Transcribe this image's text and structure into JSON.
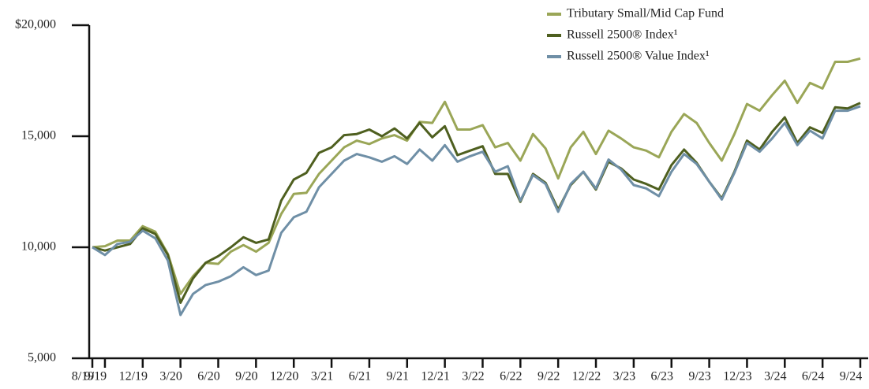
{
  "chart_data": {
    "type": "line",
    "categories": [
      "8/19",
      "9/19",
      null,
      null,
      "12/19",
      null,
      null,
      "3/20",
      null,
      null,
      "6/20",
      null,
      null,
      "9/20",
      null,
      null,
      "12/20",
      null,
      null,
      "3/21",
      null,
      null,
      "6/21",
      null,
      null,
      "9/21",
      null,
      null,
      "12/21",
      null,
      null,
      "3/22",
      null,
      null,
      "6/22",
      null,
      null,
      "9/22",
      null,
      null,
      "12/22",
      null,
      null,
      "3/23",
      null,
      null,
      "6/23",
      null,
      null,
      "9/23",
      null,
      null,
      "12/23",
      null,
      null,
      "3/24",
      null,
      null,
      "6/24",
      null,
      null,
      "9/24"
    ],
    "series": [
      {
        "name": "Tributary Small/Mid Cap Fund",
        "color": "#9aa657",
        "values": [
          10000,
          10050,
          10300,
          10300,
          10950,
          10700,
          9700,
          7900,
          8700,
          9300,
          9250,
          9800,
          10100,
          9800,
          10200,
          11500,
          12400,
          12450,
          13300,
          13900,
          14500,
          14800,
          14650,
          14900,
          15050,
          14800,
          15650,
          15600,
          16550,
          15300,
          15300,
          15500,
          14500,
          14700,
          13900,
          15100,
          14450,
          13100,
          14500,
          15200,
          14200,
          15250,
          14900,
          14500,
          14350,
          14050,
          15200,
          16000,
          15600,
          14700,
          13900,
          15100,
          16450,
          16150,
          16850,
          17500,
          16500,
          17400,
          17150,
          18350,
          18350,
          18500
        ]
      },
      {
        "name": "Russell 2500® Index¹",
        "color": "#4e5f1f",
        "values": [
          10000,
          9850,
          10000,
          10150,
          10850,
          10600,
          9650,
          7500,
          8600,
          9300,
          9600,
          10000,
          10450,
          10200,
          10350,
          12100,
          13050,
          13350,
          14250,
          14500,
          15050,
          15100,
          15300,
          15000,
          15350,
          14900,
          15600,
          14950,
          15450,
          14150,
          14350,
          14550,
          13300,
          13300,
          12050,
          13300,
          12900,
          11700,
          12800,
          13400,
          12600,
          13850,
          13550,
          13050,
          12850,
          12600,
          13700,
          14400,
          13800,
          12950,
          12200,
          13400,
          14800,
          14400,
          15200,
          15850,
          14700,
          15400,
          15150,
          16300,
          16250,
          16500
        ]
      },
      {
        "name": "Russell 2500® Value Index¹",
        "color": "#6f8fa6",
        "values": [
          10000,
          9650,
          10150,
          10250,
          10750,
          10400,
          9400,
          6950,
          7900,
          8300,
          8450,
          8700,
          9100,
          8750,
          8950,
          10650,
          11350,
          11600,
          12700,
          13300,
          13900,
          14200,
          14050,
          13850,
          14100,
          13750,
          14400,
          13900,
          14600,
          13850,
          14100,
          14300,
          13400,
          13650,
          12100,
          13250,
          12850,
          11600,
          12850,
          13400,
          12650,
          13950,
          13500,
          12800,
          12650,
          12300,
          13400,
          14200,
          13750,
          12950,
          12150,
          13350,
          14700,
          14300,
          14900,
          15600,
          14600,
          15250,
          14900,
          16150,
          16150,
          16350
        ]
      }
    ],
    "ylim": [
      5000,
      20000
    ],
    "yticks": [
      {
        "value": 5000,
        "label": "5,000"
      },
      {
        "value": 10000,
        "label": "10,000"
      },
      {
        "value": 15000,
        "label": "15,000"
      },
      {
        "value": 20000,
        "label": "$20,000"
      }
    ],
    "grid": false,
    "legend": "top-right"
  }
}
